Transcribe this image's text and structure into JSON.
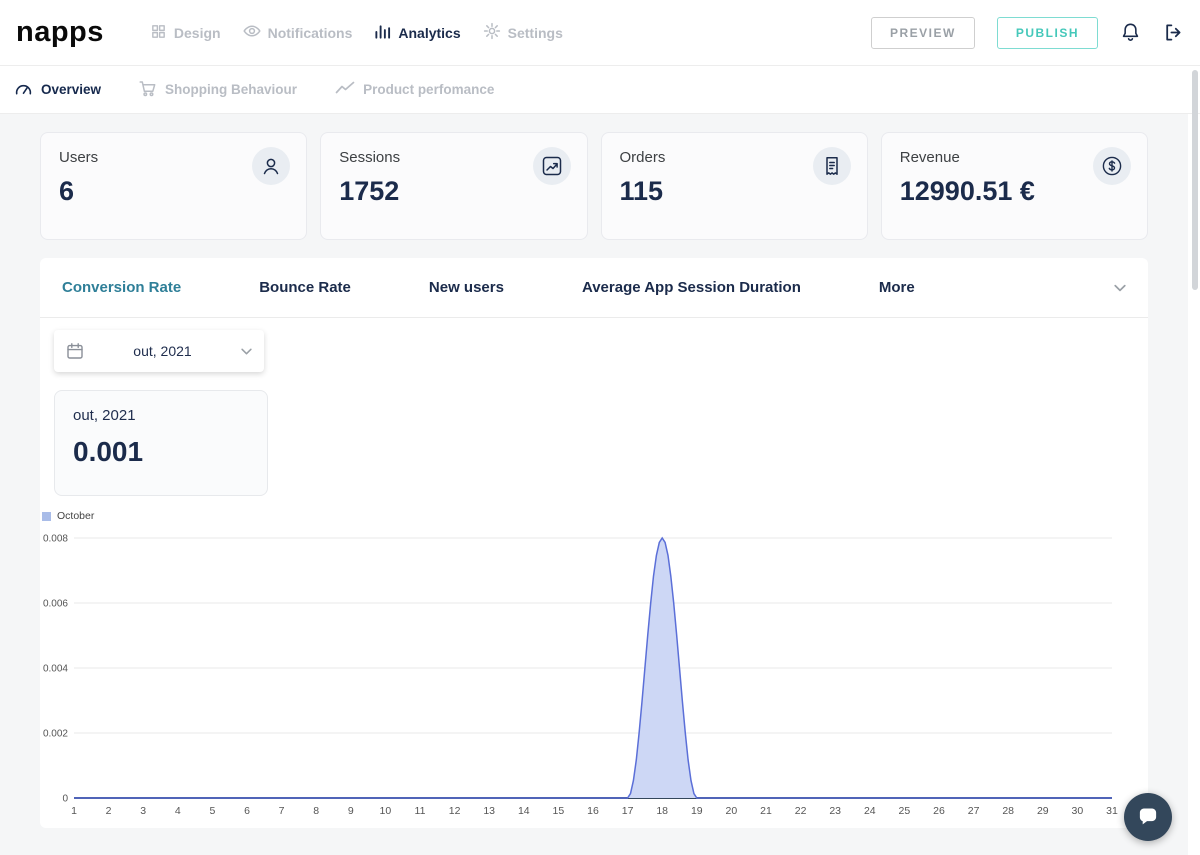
{
  "header": {
    "logo": "napps",
    "nav": [
      {
        "label": "Design"
      },
      {
        "label": "Notifications"
      },
      {
        "label": "Analytics"
      },
      {
        "label": "Settings"
      }
    ],
    "preview_label": "PREVIEW",
    "publish_label": "PUBLISH"
  },
  "subnav": {
    "items": [
      {
        "label": "Overview"
      },
      {
        "label": "Shopping Behaviour"
      },
      {
        "label": "Product perfomance"
      }
    ]
  },
  "stats": {
    "cards": [
      {
        "label": "Users",
        "value": "6"
      },
      {
        "label": "Sessions",
        "value": "1752"
      },
      {
        "label": "Orders",
        "value": "115"
      },
      {
        "label": "Revenue",
        "value": "12990.51 €"
      }
    ]
  },
  "metrics_tabs": {
    "items": [
      {
        "label": "Conversion Rate"
      },
      {
        "label": "Bounce Rate"
      },
      {
        "label": "New users"
      },
      {
        "label": "Average App Session Duration"
      },
      {
        "label": "More"
      }
    ]
  },
  "date_picker": {
    "value": "out, 2021"
  },
  "summary_card": {
    "period": "out, 2021",
    "value": "0.001"
  },
  "chart_data": {
    "type": "area",
    "title": "",
    "xlabel": "",
    "ylabel": "",
    "legend": [
      "October"
    ],
    "legend_position": "top-left",
    "grid": true,
    "x": [
      1,
      2,
      3,
      4,
      5,
      6,
      7,
      8,
      9,
      10,
      11,
      12,
      13,
      14,
      15,
      16,
      17,
      18,
      19,
      20,
      21,
      22,
      23,
      24,
      25,
      26,
      27,
      28,
      29,
      30,
      31
    ],
    "values": [
      0,
      0,
      0,
      0,
      0,
      0,
      0,
      0,
      0,
      0,
      0,
      0,
      0,
      0,
      0,
      0,
      0,
      0.008,
      0,
      0,
      0,
      0,
      0,
      0,
      0,
      0,
      0,
      0,
      0,
      0,
      0
    ],
    "ylim": [
      0,
      0.008
    ],
    "yticks": [
      0,
      0.002,
      0.004,
      0.006,
      0.008
    ],
    "line_color": "#5b6fd8",
    "fill_color": "#cdd7f5",
    "axis_color": "#33475b",
    "legend_color": "#a9bce8"
  },
  "colors": {
    "accent_teal": "#45c8ba",
    "navy": "#1b2b4b",
    "tab_active": "#2f7f98"
  }
}
